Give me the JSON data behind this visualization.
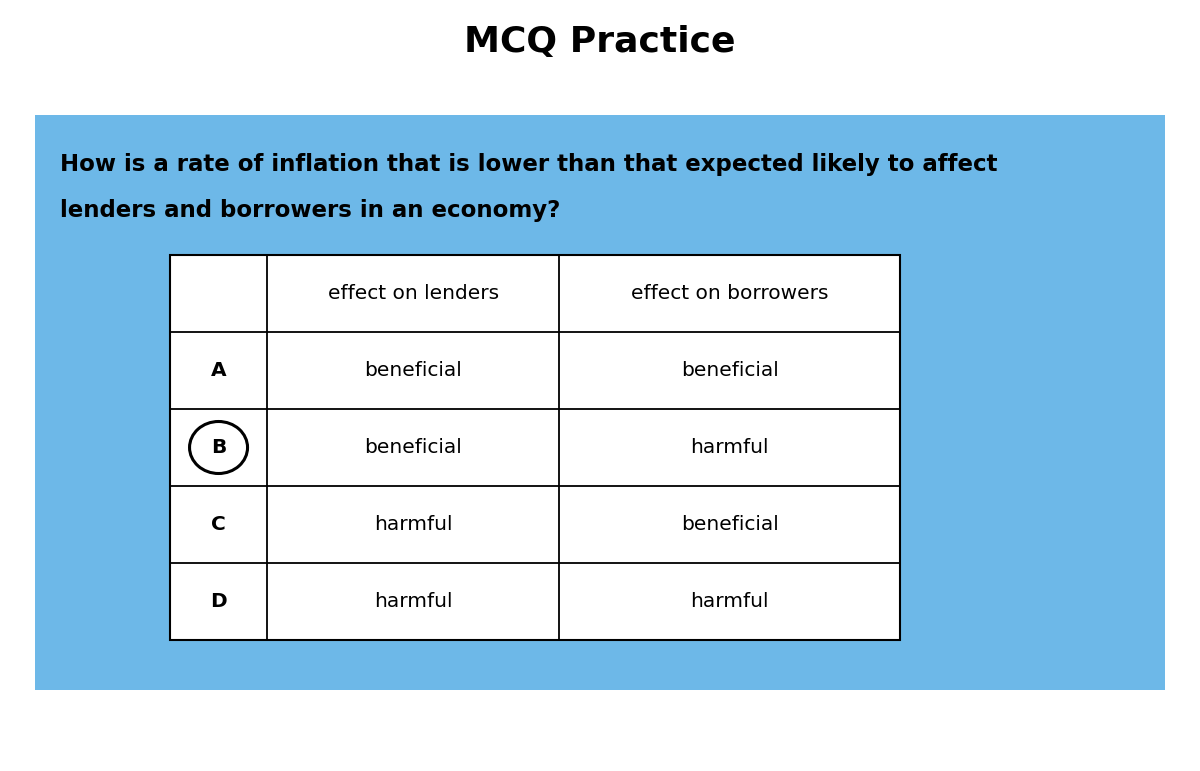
{
  "title": "MCQ Practice",
  "title_fontsize": 26,
  "title_fontweight": "bold",
  "question_line1": "How is a rate of inflation that is lower than that expected likely to affect",
  "question_line2": "lenders and borrowers in an economy?",
  "question_fontsize": 16.5,
  "question_fontweight": "bold",
  "bg_color": "#6db8e8",
  "white": "#ffffff",
  "black": "#000000",
  "table_header": [
    "",
    "effect on lenders",
    "effect on borrowers"
  ],
  "table_rows": [
    [
      "A",
      "beneficial",
      "beneficial"
    ],
    [
      "B",
      "beneficial",
      "harmful"
    ],
    [
      "C",
      "harmful",
      "beneficial"
    ],
    [
      "D",
      "harmful",
      "harmful"
    ]
  ],
  "circled_row": 1,
  "table_fontsize": 14.5,
  "header_fontsize": 14.5,
  "fig_width": 12.0,
  "fig_height": 7.71
}
